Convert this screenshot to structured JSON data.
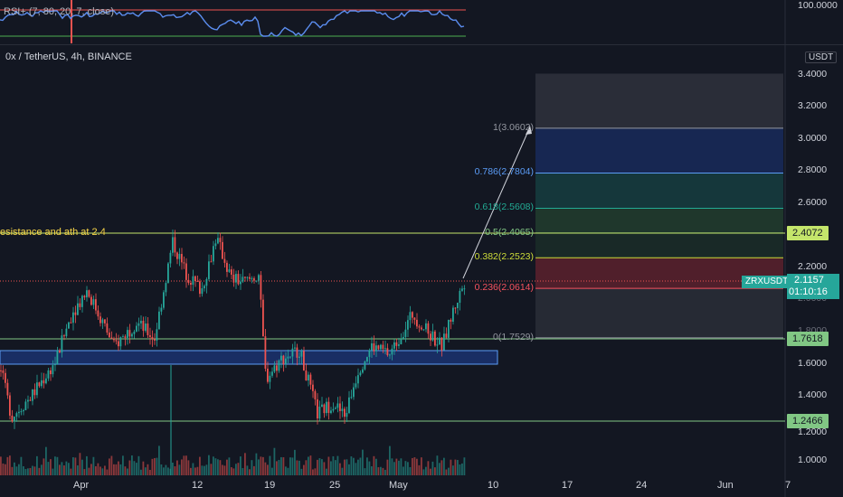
{
  "indicator": {
    "label": "RSI+ (7, 80, 20, 7, close)",
    "axis_value": "100.0000"
  },
  "chart": {
    "title": "0x / TetherUS, 4h, BINANCE",
    "currency": "USDT",
    "annotation": "esistance and ath at 2.4",
    "price_ticks": [
      "3.4000",
      "3.2000",
      "3.0000",
      "2.8000",
      "2.6000",
      "2.2000",
      "2.0000",
      "1.8000",
      "1.6000",
      "1.4000",
      "1.2000",
      "1.0000"
    ],
    "date_ticks": [
      "Apr",
      "12",
      "19",
      "25",
      "May",
      "10",
      "17",
      "24",
      "Jun",
      "7"
    ]
  },
  "fib_levels": [
    {
      "label": "1(3.0602)",
      "value": 3.0602,
      "color": "#9598a1"
    },
    {
      "label": "0.786(2.7804)",
      "value": 2.7804,
      "color": "#5b9cf6"
    },
    {
      "label": "0.618(2.5608)",
      "value": 2.5608,
      "color": "#22ab94"
    },
    {
      "label": "0.5(2.4065)",
      "value": 2.4065,
      "color": "#81c784"
    },
    {
      "label": "0.382(2.2523)",
      "value": 2.2523,
      "color": "#cddc39"
    },
    {
      "label": "0.236(2.0614)",
      "value": 2.0614,
      "color": "#f7525f"
    },
    {
      "label": "0(1.7529)",
      "value": 1.7529,
      "color": "#9598a1"
    }
  ],
  "price_tags": {
    "resistance": "2.4072",
    "symbol": "ZRXUSDT",
    "current": "2.1157",
    "countdown": "01:10:16",
    "support": "1.7618",
    "low": "1.2466"
  },
  "colors": {
    "bull": "#26a69a",
    "bear": "#ef5350",
    "rsi": "#5b8def",
    "resistance": "#c4e56b",
    "zone": "#2962ff"
  }
}
